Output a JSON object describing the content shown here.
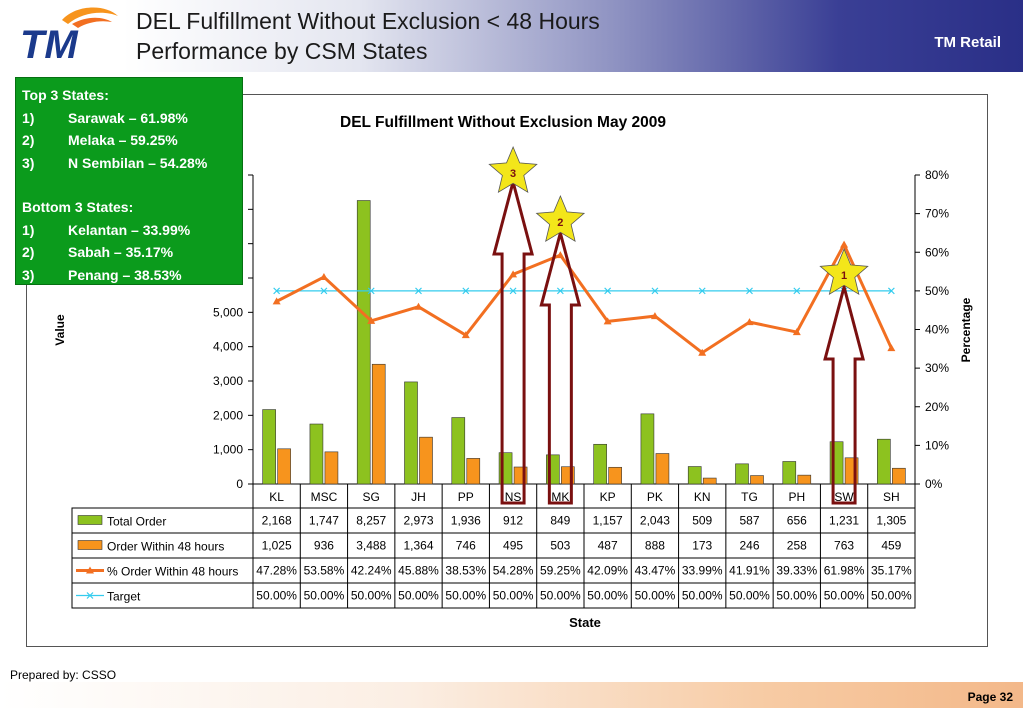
{
  "slide": {
    "title_line1": "DEL Fulfillment Without Exclusion < 48 Hours",
    "title_line2": "Performance by CSM States",
    "brand": "TM Retail",
    "logo_text": "TM",
    "prepared_by": "Prepared by: CSSO",
    "page": "Page 32"
  },
  "notes": {
    "top_heading": "Top 3 States:",
    "top": [
      {
        "num": "1)",
        "text": "Sarawak – 61.98%"
      },
      {
        "num": "2)",
        "text": "Melaka – 59.25%"
      },
      {
        "num": "3)",
        "text": "N Sembilan – 54.28%"
      }
    ],
    "bottom_heading": "Bottom 3 States:",
    "bottom": [
      {
        "num": "1)",
        "text": "Kelantan – 33.99%"
      },
      {
        "num": "2)",
        "text": "Sabah – 35.17%"
      },
      {
        "num": "3)",
        "text": "Penang – 38.53%"
      }
    ]
  },
  "colors": {
    "total_order": "#8dc21f",
    "order_within": "#f7941d",
    "pct_line": "#f26f21",
    "target_line": "#33ccee",
    "arrow": "#7a1010",
    "star": "#f3e61a",
    "notes_bg": "#0b9b1c"
  },
  "chart_data": {
    "type": "bar",
    "title": "DEL Fulfillment Without Exclusion May 2009",
    "xlabel": "State",
    "ylabel": "Value",
    "y2label": "Percentage",
    "ylim": [
      0,
      9000
    ],
    "y_ticks": [
      "0",
      "1,000",
      "2,000",
      "3,000",
      "4,000",
      "5,000"
    ],
    "y2lim": [
      0,
      80
    ],
    "y2_ticks": [
      "0%",
      "10%",
      "20%",
      "30%",
      "40%",
      "50%",
      "60%",
      "70%",
      "80%"
    ],
    "categories": [
      "KL",
      "MSC",
      "SG",
      "JH",
      "PP",
      "NS",
      "MK",
      "KP",
      "PK",
      "KN",
      "TG",
      "PH",
      "SW",
      "SH"
    ],
    "series": [
      {
        "name": "Total Order",
        "type": "bar",
        "axis": "left",
        "values": [
          2168,
          1747,
          8257,
          2973,
          1936,
          912,
          849,
          1157,
          2043,
          509,
          587,
          656,
          1231,
          1305
        ],
        "labels": [
          "2,168",
          "1,747",
          "8,257",
          "2,973",
          "1,936",
          "912",
          "849",
          "1,157",
          "2,043",
          "509",
          "587",
          "656",
          "1,231",
          "1,305"
        ]
      },
      {
        "name": "Order Within 48 hours",
        "type": "bar",
        "axis": "left",
        "values": [
          1025,
          936,
          3488,
          1364,
          746,
          495,
          503,
          487,
          888,
          173,
          246,
          258,
          763,
          459
        ],
        "labels": [
          "1,025",
          "936",
          "3,488",
          "1,364",
          "746",
          "495",
          "503",
          "487",
          "888",
          "173",
          "246",
          "258",
          "763",
          "459"
        ]
      },
      {
        "name": "% Order Within 48 hours",
        "type": "line",
        "axis": "right",
        "values": [
          47.28,
          53.58,
          42.24,
          45.88,
          38.53,
          54.28,
          59.25,
          42.09,
          43.47,
          33.99,
          41.91,
          39.33,
          61.98,
          35.17
        ],
        "labels": [
          "47.28%",
          "53.58%",
          "42.24%",
          "45.88%",
          "38.53%",
          "54.28%",
          "59.25%",
          "42.09%",
          "43.47%",
          "33.99%",
          "41.91%",
          "39.33%",
          "61.98%",
          "35.17%"
        ]
      },
      {
        "name": "Target",
        "type": "line",
        "axis": "right",
        "values": [
          50,
          50,
          50,
          50,
          50,
          50,
          50,
          50,
          50,
          50,
          50,
          50,
          50,
          50
        ],
        "labels": [
          "50.00%",
          "50.00%",
          "50.00%",
          "50.00%",
          "50.00%",
          "50.00%",
          "50.00%",
          "50.00%",
          "50.00%",
          "50.00%",
          "50.00%",
          "50.00%",
          "50.00%",
          "50.00%"
        ]
      }
    ],
    "annotations": [
      {
        "category": "SW",
        "rank": "1"
      },
      {
        "category": "MK",
        "rank": "2"
      },
      {
        "category": "NS",
        "rank": "3"
      }
    ]
  }
}
